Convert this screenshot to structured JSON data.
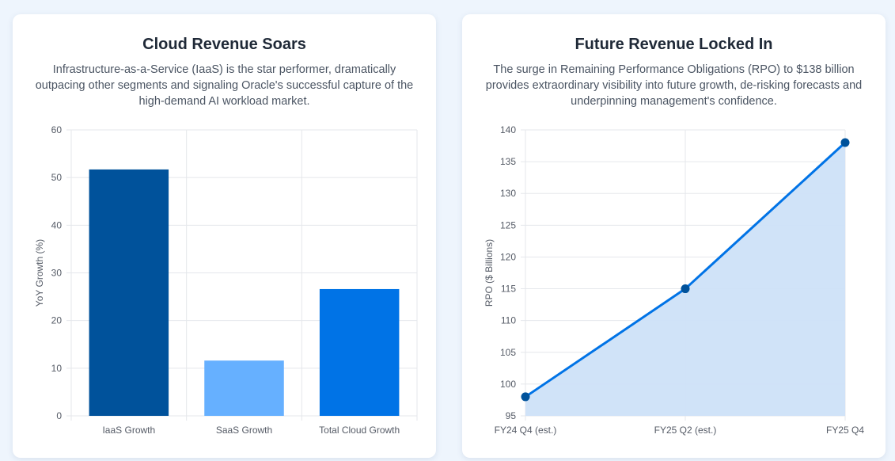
{
  "colors": {
    "background": "#eef5fd",
    "card": "#ffffff",
    "iaas_bar": "#00529b",
    "saas_bar": "#66b0ff",
    "total_bar": "#0073e6",
    "line": "#0073e6",
    "line_point": "#00529b",
    "area_fill": "#cde2f8",
    "grid": "#e5e7eb"
  },
  "cards": {
    "left": {
      "title": "Cloud Revenue Soars",
      "description": "Infrastructure-as-a-Service (IaaS) is the star performer, dramatically outpacing other segments and signaling Oracle's successful capture of the high-demand AI workload market."
    },
    "right": {
      "title": "Future Revenue Locked In",
      "description": "The surge in Remaining Performance Obligations (RPO) to $138 billion provides extraordinary visibility into future growth, de-risking forecasts and underpinning management's confidence."
    }
  },
  "chart_data": [
    {
      "type": "bar",
      "title": "Cloud Revenue Soars",
      "categories": [
        "IaaS Growth",
        "SaaS Growth",
        "Total Cloud Growth"
      ],
      "values": [
        51.7,
        11.6,
        26.6
      ],
      "colors": [
        "#00529b",
        "#66b0ff",
        "#0073e6"
      ],
      "xlabel": "",
      "ylabel": "YoY Growth (%)",
      "ylim": [
        0,
        60
      ],
      "yticks": [
        0,
        10,
        20,
        30,
        40,
        50,
        60
      ],
      "grid": true
    },
    {
      "type": "area",
      "title": "Future Revenue Locked In",
      "categories": [
        "FY24 Q4 (est.)",
        "FY25 Q2 (est.)",
        "FY25 Q4"
      ],
      "series": [
        {
          "name": "RPO",
          "values": [
            98,
            115,
            138
          ]
        }
      ],
      "xlabel": "",
      "ylabel": "RPO ($ Billions)",
      "ylim": [
        95,
        140
      ],
      "yticks": [
        95,
        100,
        105,
        110,
        115,
        120,
        125,
        130,
        135,
        140
      ],
      "grid": true
    }
  ]
}
